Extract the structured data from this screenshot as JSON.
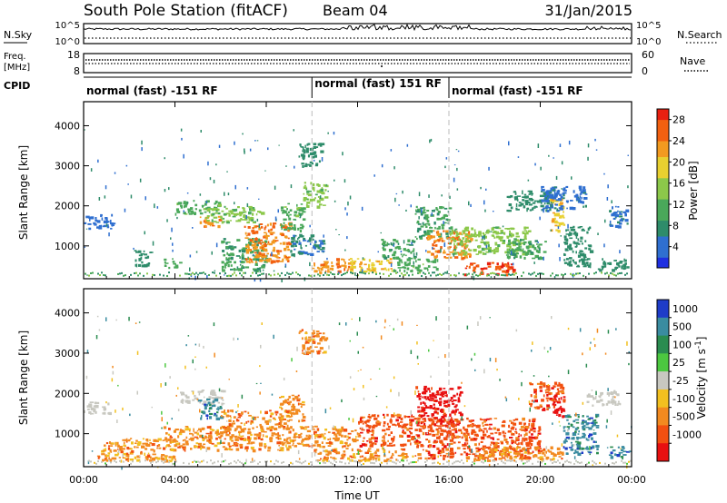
{
  "header": {
    "station": "South Pole Station (fitACF)",
    "beam": "Beam 04",
    "date": "31/Jan/2015"
  },
  "top_panel": {
    "nsky_label": "N.Sky",
    "nsearch_label": "N.Search",
    "left_ticks": [
      "10^5",
      "10^0"
    ],
    "right_ticks": [
      "10^5",
      "10^0"
    ],
    "freq_label_1": "Freq.",
    "freq_label_2": "[MHz]",
    "freq_ticks": [
      "18",
      "8"
    ],
    "nave_label": "Nave",
    "nave_ticks": [
      "60",
      "0"
    ],
    "cpid_label": "CPID",
    "cpid_segments": [
      {
        "label": "normal (fast) -151 RF",
        "start_hour": 0,
        "end_hour": 10
      },
      {
        "label": "normal (fast) 151 RF",
        "start_hour": 10,
        "end_hour": 16
      },
      {
        "label": "normal (fast) -151 RF",
        "start_hour": 16,
        "end_hour": 24
      }
    ]
  },
  "colors": {
    "power_scale": [
      "#1f2fe0",
      "#2f6fd0",
      "#2e8c6a",
      "#4aa85a",
      "#8cc84a",
      "#e8d030",
      "#f29a20",
      "#f26010",
      "#e82010"
    ],
    "velocity_scale": [
      "#1e3cc8",
      "#3a8ca0",
      "#2a8c50",
      "#4cc840",
      "#c8c8c0",
      "#f2c020",
      "#f28a20",
      "#f25010",
      "#e81010"
    ]
  },
  "chart_data": [
    {
      "type": "heatmap",
      "title": "Power",
      "xlabel": "Time UT",
      "ylabel": "Slant Range [km]",
      "xlim": [
        0,
        24
      ],
      "ylim": [
        180,
        4600
      ],
      "x_tick_labels": [
        "00:00",
        "04:00",
        "08:00",
        "12:00",
        "16:00",
        "20:00",
        "00:00"
      ],
      "x_ticks_hours": [
        0,
        4,
        8,
        12,
        16,
        20,
        24
      ],
      "y_ticks": [
        1000,
        2000,
        3000,
        4000
      ],
      "colorbar_label": "Power [dB]",
      "colorbar_ticks": [
        4,
        8,
        12,
        16,
        20,
        24,
        28
      ],
      "colorbar_range": [
        0,
        30
      ],
      "regions": [
        {
          "t0": 0.0,
          "t1": 1.3,
          "r0": 1450,
          "r1": 1800,
          "value": 4
        },
        {
          "t0": 2.2,
          "t1": 3.0,
          "r0": 500,
          "r1": 900,
          "value": 8
        },
        {
          "t0": 3.5,
          "t1": 4.2,
          "r0": 450,
          "r1": 700,
          "value": 12
        },
        {
          "t0": 4.0,
          "t1": 6.0,
          "r0": 1800,
          "r1": 2150,
          "value": 12
        },
        {
          "t0": 5.0,
          "t1": 6.0,
          "r0": 1500,
          "r1": 1750,
          "value": 24
        },
        {
          "t0": 5.3,
          "t1": 7.8,
          "r0": 1600,
          "r1": 2000,
          "value": 14
        },
        {
          "t0": 6.0,
          "t1": 8.0,
          "r0": 400,
          "r1": 1200,
          "value": 10
        },
        {
          "t0": 7.0,
          "t1": 9.0,
          "r0": 600,
          "r1": 1600,
          "value": 24
        },
        {
          "t0": 8.6,
          "t1": 9.6,
          "r0": 1400,
          "r1": 2100,
          "value": 12
        },
        {
          "t0": 9.0,
          "t1": 10.5,
          "r0": 800,
          "r1": 1300,
          "value": 6
        },
        {
          "t0": 9.4,
          "t1": 10.4,
          "r0": 3000,
          "r1": 3600,
          "value": 8
        },
        {
          "t0": 9.6,
          "t1": 10.6,
          "r0": 2000,
          "r1": 2600,
          "value": 14
        },
        {
          "t0": 10.0,
          "t1": 11.6,
          "r0": 350,
          "r1": 700,
          "value": 24
        },
        {
          "t0": 11.6,
          "t1": 13.5,
          "r0": 350,
          "r1": 700,
          "value": 20
        },
        {
          "t0": 13.0,
          "t1": 14.5,
          "r0": 700,
          "r1": 1200,
          "value": 10
        },
        {
          "t0": 13.5,
          "t1": 15.5,
          "r0": 400,
          "r1": 700,
          "value": 12
        },
        {
          "t0": 14.5,
          "t1": 16.0,
          "r0": 1200,
          "r1": 2000,
          "value": 10
        },
        {
          "t0": 15.0,
          "t1": 17.0,
          "r0": 700,
          "r1": 1400,
          "value": 24
        },
        {
          "t0": 16.6,
          "t1": 18.8,
          "r0": 300,
          "r1": 600,
          "value": 28
        },
        {
          "t0": 16.0,
          "t1": 19.5,
          "r0": 800,
          "r1": 1500,
          "value": 14
        },
        {
          "t0": 18.5,
          "t1": 20.2,
          "r0": 700,
          "r1": 1200,
          "value": 10
        },
        {
          "t0": 18.5,
          "t1": 20.5,
          "r0": 1900,
          "r1": 2400,
          "value": 8
        },
        {
          "t0": 20.4,
          "t1": 21.0,
          "r0": 1400,
          "r1": 2200,
          "value": 20
        },
        {
          "t0": 20.0,
          "t1": 22.0,
          "r0": 1900,
          "r1": 2500,
          "value": 5
        },
        {
          "t0": 21.0,
          "t1": 22.2,
          "r0": 500,
          "r1": 1500,
          "value": 8
        },
        {
          "t0": 22.5,
          "t1": 23.8,
          "r0": 400,
          "r1": 700,
          "value": 8
        },
        {
          "t0": 23.0,
          "t1": 23.8,
          "r0": 1500,
          "r1": 2000,
          "value": 5
        }
      ]
    },
    {
      "type": "heatmap",
      "title": "Velocity",
      "xlabel": "Time UT",
      "ylabel": "Slant Range [km]",
      "xlim": [
        0,
        24
      ],
      "ylim": [
        180,
        4600
      ],
      "x_tick_labels": [
        "00:00",
        "04:00",
        "08:00",
        "12:00",
        "16:00",
        "20:00",
        "00:00"
      ],
      "x_ticks_hours": [
        0,
        4,
        8,
        12,
        16,
        20,
        24
      ],
      "y_ticks": [
        1000,
        2000,
        3000,
        4000
      ],
      "colorbar_label": "Velocity [m s^-1]",
      "colorbar_tick_labels": [
        "1000",
        "500",
        "100",
        "25",
        "-25",
        "-100",
        "-500",
        "-1000"
      ],
      "regions": [
        {
          "t0": 0.0,
          "t1": 1.2,
          "r0": 1500,
          "r1": 1800,
          "value": 0
        },
        {
          "t0": 4.2,
          "t1": 6.2,
          "r0": 1750,
          "r1": 2100,
          "value": 0
        },
        {
          "t0": 5.0,
          "t1": 6.0,
          "r0": 1400,
          "r1": 1900,
          "value": 150
        },
        {
          "t0": 6.0,
          "t1": 9.0,
          "r0": 600,
          "r1": 1600,
          "value": -300
        },
        {
          "t0": 3.5,
          "t1": 6.0,
          "r0": 600,
          "r1": 1200,
          "value": -150
        },
        {
          "t0": 0.5,
          "t1": 4.0,
          "r0": 350,
          "r1": 900,
          "value": -150
        },
        {
          "t0": 8.5,
          "t1": 9.6,
          "r0": 1300,
          "r1": 2000,
          "value": -400
        },
        {
          "t0": 9.0,
          "t1": 12.0,
          "r0": 700,
          "r1": 1200,
          "value": -300
        },
        {
          "t0": 9.4,
          "t1": 10.6,
          "r0": 3000,
          "r1": 3600,
          "value": -150
        },
        {
          "t0": 10.0,
          "t1": 15.0,
          "r0": 350,
          "r1": 650,
          "value": -200
        },
        {
          "t0": 12.0,
          "t1": 15.0,
          "r0": 700,
          "r1": 1500,
          "value": -500
        },
        {
          "t0": 14.5,
          "t1": 16.5,
          "r0": 1200,
          "r1": 2200,
          "value": -800
        },
        {
          "t0": 15.0,
          "t1": 20.0,
          "r0": 400,
          "r1": 1400,
          "value": -700
        },
        {
          "t0": 17.0,
          "t1": 21.0,
          "r0": 350,
          "r1": 700,
          "value": -300
        },
        {
          "t0": 19.5,
          "t1": 21.0,
          "r0": 1600,
          "r1": 2300,
          "value": -500
        },
        {
          "t0": 20.5,
          "t1": 21.0,
          "r0": 1400,
          "r1": 2000,
          "value": -800
        },
        {
          "t0": 21.0,
          "t1": 22.5,
          "r0": 500,
          "r1": 1500,
          "value": 300
        },
        {
          "t0": 22.0,
          "t1": 23.5,
          "r0": 1700,
          "r1": 2100,
          "value": 0
        },
        {
          "t0": 23.0,
          "t1": 23.9,
          "r0": 400,
          "r1": 700,
          "value": 150
        }
      ]
    }
  ]
}
